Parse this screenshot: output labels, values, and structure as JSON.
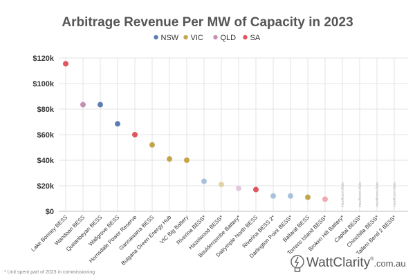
{
  "chart_data": {
    "type": "scatter",
    "title": "Arbitrage Revenue Per MW of Capacity in 2023",
    "legend": [
      {
        "name": "NSW",
        "color": "#5b7fb3"
      },
      {
        "name": "VIC",
        "color": "#c4a64a"
      },
      {
        "name": "QLD",
        "color": "#c490b5"
      },
      {
        "name": "SA",
        "color": "#e0555e"
      }
    ],
    "legend_position": "top-center",
    "ylim": [
      0,
      120000
    ],
    "yticks": [
      {
        "value": 0,
        "label": "$0"
      },
      {
        "value": 20000,
        "label": "$20k"
      },
      {
        "value": 40000,
        "label": "$40k"
      },
      {
        "value": 60000,
        "label": "$60k"
      },
      {
        "value": 80000,
        "label": "$80k"
      },
      {
        "value": 100000,
        "label": "$100k"
      },
      {
        "value": 120000,
        "label": "$120k"
      }
    ],
    "grid": "vertical and horizontal",
    "points": [
      {
        "label": "Lake Bonney BESS",
        "value": 115500,
        "region": "SA",
        "color": "#e0555e"
      },
      {
        "label": "Wandoan BESS",
        "value": 83500,
        "region": "QLD",
        "color": "#c490b5"
      },
      {
        "label": "Queanbeyan BESS",
        "value": 83500,
        "region": "NSW",
        "color": "#5b7fb3"
      },
      {
        "label": "Wallgrove BESS",
        "value": 68500,
        "region": "NSW",
        "color": "#5b7fb3"
      },
      {
        "label": "Hornsdale Power Reserve",
        "value": 60000,
        "region": "SA",
        "color": "#e0555e"
      },
      {
        "label": "Gannawarra BESS",
        "value": 52000,
        "region": "VIC",
        "color": "#c4a64a"
      },
      {
        "label": "Bulgana Green Energy Hub",
        "value": 41000,
        "region": "VIC",
        "color": "#c4a64a"
      },
      {
        "label": "VIC Big Battery",
        "value": 40000,
        "region": "VIC",
        "color": "#c4a64a"
      },
      {
        "label": "Riverina BESS*",
        "value": 23500,
        "region": "NSW",
        "color": "#a9c1da"
      },
      {
        "label": "Hazelwood BESS*",
        "value": 21000,
        "region": "VIC",
        "color": "#e2d3a2"
      },
      {
        "label": "Bouldercombe Battery*",
        "value": 18000,
        "region": "QLD",
        "color": "#e3c8db"
      },
      {
        "label": "Dalrymple North BESS",
        "value": 17000,
        "region": "SA",
        "color": "#e0555e"
      },
      {
        "label": "Riverina BESS 2*",
        "value": 12000,
        "region": "NSW",
        "color": "#a9c1da"
      },
      {
        "label": "Darlington Point BESS*",
        "value": 12000,
        "region": "NSW",
        "color": "#a9c1da"
      },
      {
        "label": "Ballarat BESS",
        "value": 11000,
        "region": "VIC",
        "color": "#c4a64a"
      },
      {
        "label": "Torrens Island BESS*",
        "value": 9500,
        "region": "SA",
        "color": "#f2aab0"
      },
      {
        "label": "Broken Hill Battery*",
        "value": null,
        "region": "NSW",
        "annotation": "Insufficient Data"
      },
      {
        "label": "Capital BESS*",
        "value": null,
        "region": "NSW",
        "annotation": "Insufficient Data"
      },
      {
        "label": "Chinchilla BESS*",
        "value": null,
        "region": "QLD",
        "annotation": "Insufficient Data"
      },
      {
        "label": "Tailem Bend 2 BESS*",
        "value": null,
        "region": "SA",
        "annotation": "Insufficient Data"
      }
    ],
    "footnote": "* Unit spent part of 2023 in commissioning",
    "brand_text": "WattClarity",
    "brand_reg": "®",
    "brand_domain": ".com.au"
  }
}
